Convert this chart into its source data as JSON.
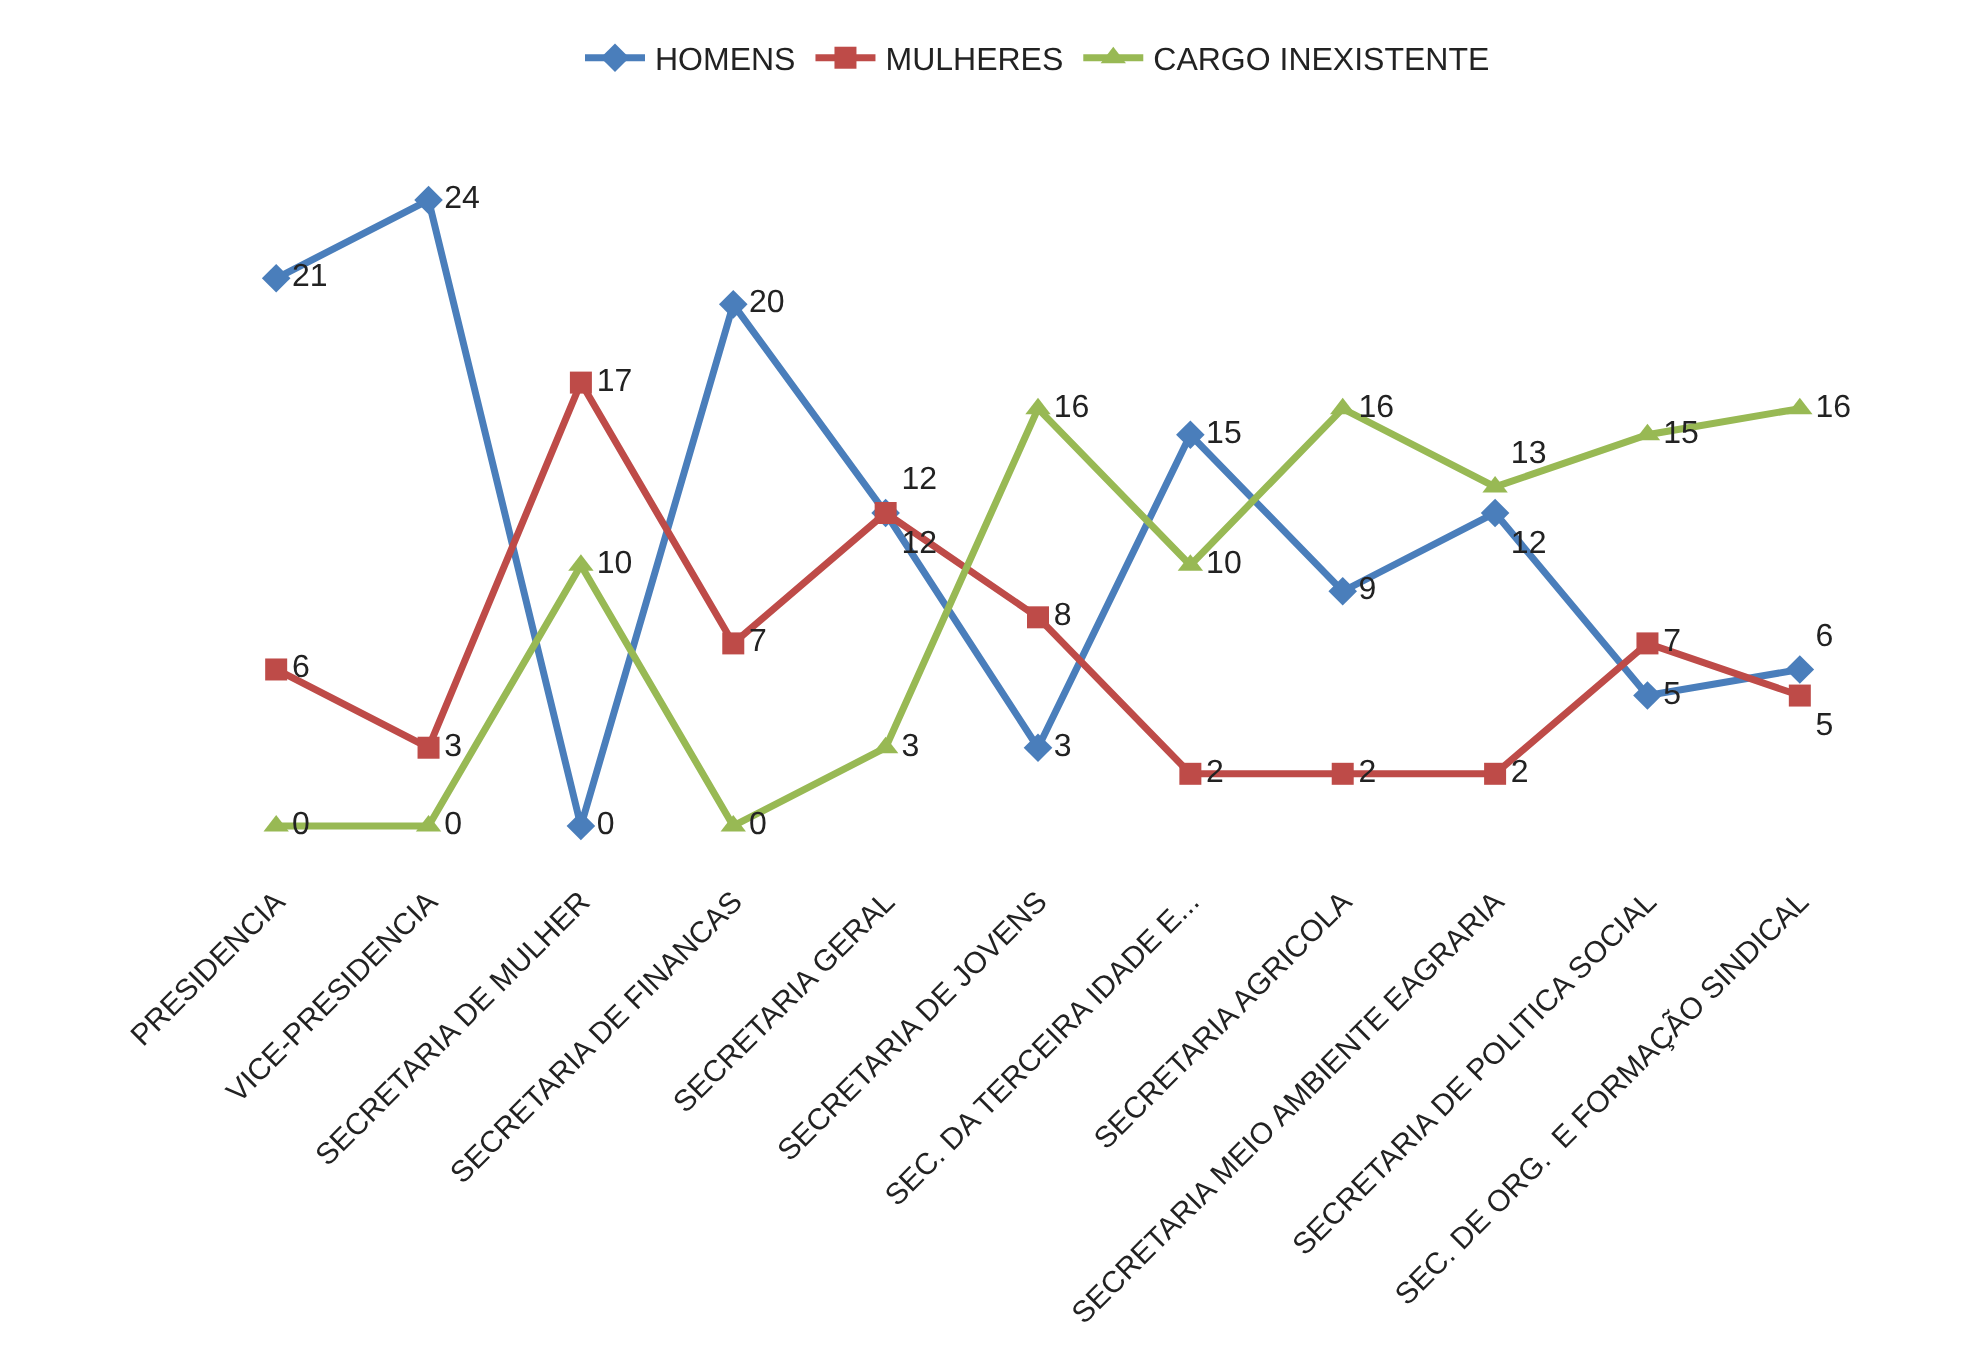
{
  "chart_data": {
    "type": "line",
    "categories": [
      "PRESIDENCIA",
      "VICE-PRESIDENCIA",
      "SECRETARIA DE MULHER",
      "SECRETARIA DE FINANCAS",
      "SECRETARIA GERAL",
      "SECRETARIA DE JOVENS",
      "SEC. DA TERCEIRA IDADE E...",
      "SECRETARIA AGRICOLA",
      "SECRETARIA MEIO AMBIENTE EAGRARIA",
      "SECRETARIA DE POLITICA SOCIAL",
      "SEC. DE ORG.  E FORMAÇÃO SINDICAL"
    ],
    "series": [
      {
        "name": "HOMENS",
        "color": "#4a7ebb",
        "marker": "diamond",
        "values": [
          21,
          24,
          0,
          20,
          12,
          3,
          15,
          9,
          12,
          5,
          6
        ]
      },
      {
        "name": "MULHERES",
        "color": "#be4b48",
        "marker": "square",
        "values": [
          6,
          3,
          17,
          7,
          12,
          8,
          2,
          2,
          2,
          7,
          5
        ]
      },
      {
        "name": "CARGO INEXISTENTE",
        "color": "#98b954",
        "marker": "triangle",
        "values": [
          0,
          0,
          10,
          0,
          3,
          16,
          10,
          16,
          13,
          15,
          16
        ]
      }
    ],
    "data_labels": true,
    "legend": "top",
    "grid": false,
    "tick_labels": "x"
  }
}
